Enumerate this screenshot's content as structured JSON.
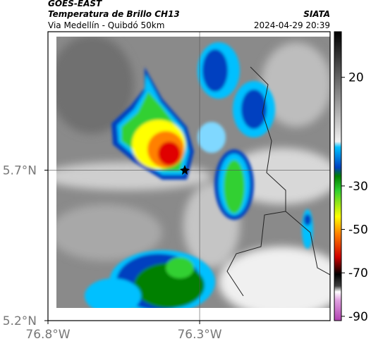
{
  "header": {
    "product": "GOES-EAST",
    "title": "Temperatura de Brillo CH13",
    "source": "SIATA",
    "subtitle": "Via Medellín - Quibdó 50km",
    "datetime": "2024-04-29 20:39"
  },
  "map": {
    "xlim": [
      -76.8,
      -75.87
    ],
    "ylim": [
      5.2,
      6.16
    ],
    "xticks": [
      {
        "value": -76.8,
        "label": "76.8°W"
      },
      {
        "value": -76.3,
        "label": "76.3°W"
      }
    ],
    "yticks": [
      {
        "value": 5.2,
        "label": "5.2°N"
      },
      {
        "value": 5.7,
        "label": "5.7°N"
      }
    ],
    "grid": true
  },
  "colorbar": {
    "lim": [
      -92,
      41
    ],
    "ticks": [
      20,
      -30,
      -50,
      -70,
      -90
    ]
  }
}
